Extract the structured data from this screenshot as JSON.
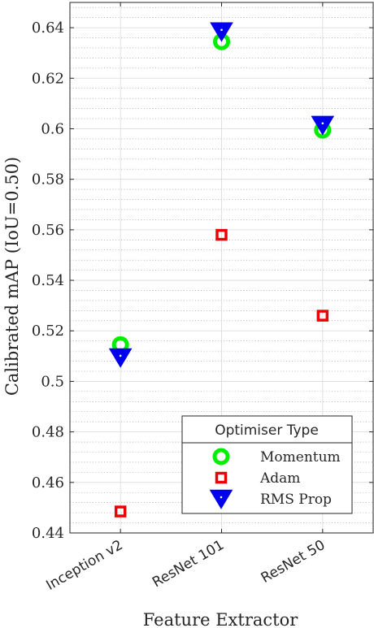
{
  "chart_data": {
    "type": "scatter",
    "title": "",
    "xlabel": "Feature Extractor",
    "ylabel": "Calibrated mAP (IoU=0.50)",
    "categories": [
      "Inception v2",
      "ResNet 101",
      "ResNet 50"
    ],
    "ylim": [
      0.44,
      0.65
    ],
    "yticks": [
      0.44,
      0.46,
      0.48,
      0.5,
      0.52,
      0.54,
      0.56,
      0.58,
      0.6,
      0.62,
      0.64
    ],
    "ytick_labels": [
      "0.44",
      "0.46",
      "0.48",
      "0.5",
      "0.52",
      "0.54",
      "0.56",
      "0.58",
      "0.6",
      "0.62",
      "0.64"
    ],
    "grid": true,
    "minor_grid": true,
    "legend": {
      "title": "Optimiser Type",
      "placement": "bottom-right"
    },
    "series": [
      {
        "name": "Momentum",
        "marker": "circle",
        "color": "#00ee00",
        "values": [
          0.5145,
          0.6345,
          0.5995
        ]
      },
      {
        "name": "Adam",
        "marker": "square",
        "color": "#ee0000",
        "values": [
          0.4485,
          0.558,
          0.526
        ]
      },
      {
        "name": "RMS Prop",
        "marker": "triangle-down",
        "color": "#0000ee",
        "values": [
          0.5095,
          0.6385,
          0.6015
        ]
      }
    ]
  }
}
